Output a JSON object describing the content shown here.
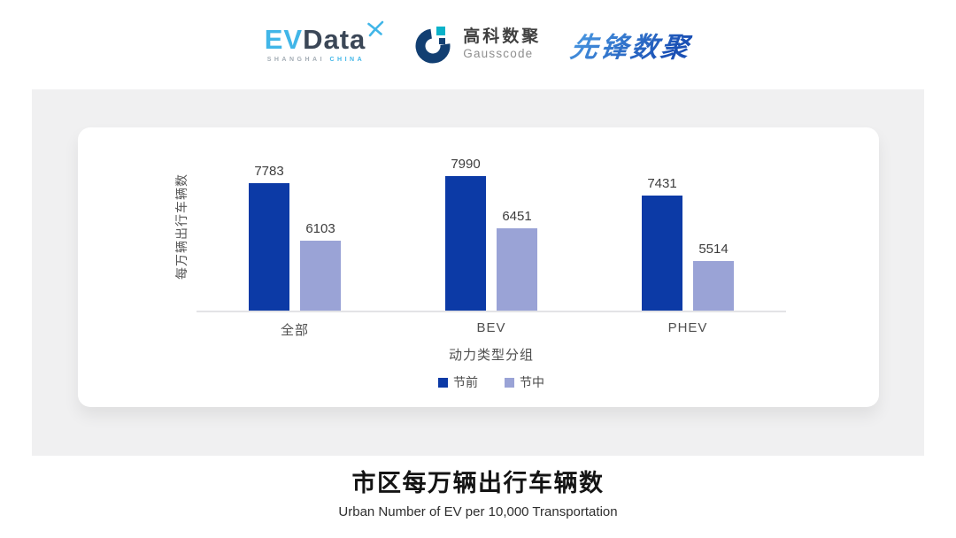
{
  "header": {
    "evdata": {
      "ev": "EV",
      "data": "Data",
      "sub_left": "SHANGHAI",
      "sub_right": "CHINA"
    },
    "gausscode": {
      "cn": "高科数聚",
      "en": "Gausscode"
    },
    "xianfeng": {
      "text": "先锋数聚"
    }
  },
  "chart_data": {
    "type": "bar",
    "title": "市区每万辆出行车辆数",
    "subtitle": "Urban Number of EV per 10,000 Transportation",
    "xlabel": "动力类型分组",
    "ylabel": "每万辆出行车辆数",
    "categories": [
      "全部",
      "BEV",
      "PHEV"
    ],
    "series": [
      {
        "name": "节前",
        "color": "#0c3aa6",
        "values": [
          7783,
          7990,
          7431
        ]
      },
      {
        "name": "节中",
        "color": "#9aa3d6",
        "values": [
          6103,
          6451,
          5514
        ]
      }
    ],
    "ylim": [
      4000,
      9000
    ],
    "grid": false,
    "value_labels": true,
    "legend_position": "bottom"
  },
  "colors": {
    "series_pre": "#0c3aa6",
    "series_mid": "#9aa3d6",
    "evdata_blue": "#41b6e8",
    "evdata_dark": "#3b4757",
    "gausscode_navy": "#123f72",
    "gausscode_teal": "#0ab2c9",
    "xianfeng_blue_light": "#4fa0e6",
    "xianfeng_blue_dark": "#1a50b5",
    "axis_line": "#e3e3e6",
    "panel_bg": "#f0f0f1"
  }
}
